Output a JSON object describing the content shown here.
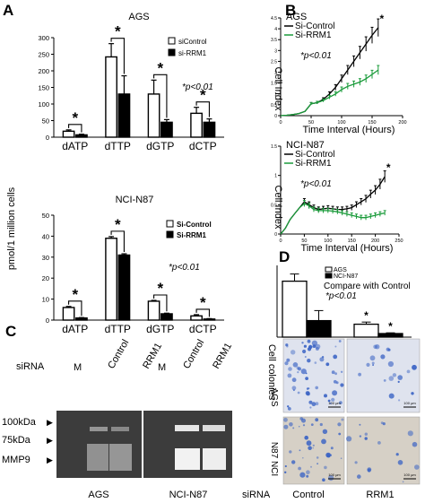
{
  "figure_labels": {
    "a": "A",
    "b": "B",
    "c": "C",
    "d": "D"
  },
  "colors": {
    "black": "#000000",
    "green": "#1a9b3a",
    "gel_bg": "#3c3c3c",
    "stain_blue": "#3a63c4",
    "plate_bg": "#dfe3ee",
    "plate_bg_nci": "#d6d0c6"
  },
  "chart_data": [
    {
      "id": "A1",
      "type": "bar",
      "title": "AGS",
      "ylabel": "pmol/1 million cells",
      "ylim": [
        0,
        300
      ],
      "yticks": [
        0,
        50,
        100,
        150,
        200,
        250,
        300
      ],
      "categories": [
        "dATP",
        "dTTP",
        "dGTP",
        "dCTP"
      ],
      "series": [
        {
          "name": "siControl",
          "values": [
            18,
            242,
            130,
            72
          ],
          "errors": [
            4,
            40,
            42,
            18
          ]
        },
        {
          "name": "si-RRM1",
          "values": [
            7,
            130,
            45,
            45
          ],
          "errors": [
            2,
            55,
            8,
            10
          ]
        }
      ],
      "significance": "*",
      "annotation": "*p<0.01"
    },
    {
      "id": "A2",
      "type": "bar",
      "title": "NCI-N87",
      "ylabel": "pmol/1 million cells",
      "ylim": [
        0,
        50
      ],
      "yticks": [
        0,
        10,
        20,
        30,
        40,
        50
      ],
      "categories": [
        "dATP",
        "dTTP",
        "dGTP",
        "dCTP"
      ],
      "series": [
        {
          "name": "Si-Control",
          "values": [
            6,
            39,
            9,
            2
          ],
          "errors": [
            0.5,
            0.8,
            0.4,
            0.6
          ]
        },
        {
          "name": "Si-RRM1",
          "values": [
            1,
            31,
            3,
            0.5
          ],
          "errors": [
            0.2,
            0.6,
            0.3,
            0.2
          ]
        }
      ],
      "significance": "*",
      "annotation": "*p<0.01"
    },
    {
      "id": "B1",
      "type": "line",
      "title": "AGS",
      "xlabel": "Time Interval (Hours)",
      "ylabel": "Cell Index",
      "xticks": [
        0,
        50,
        100,
        150,
        200
      ],
      "yticks": [
        0,
        0.5,
        1,
        1.5,
        2,
        2.5,
        3,
        3.5,
        4,
        4.5
      ],
      "xlim": [
        0,
        200
      ],
      "ylim": [
        0,
        4.5
      ],
      "series": [
        {
          "name": "Si-Control",
          "color": "#000000",
          "x": [
            0,
            10,
            20,
            30,
            40,
            50,
            60,
            70,
            80,
            90,
            100,
            110,
            120,
            130,
            140,
            150,
            160
          ],
          "y": [
            0,
            0.02,
            0.05,
            0.1,
            0.2,
            0.55,
            0.6,
            0.75,
            1.0,
            1.3,
            1.7,
            2.1,
            2.5,
            2.9,
            3.3,
            3.7,
            4.05
          ]
        },
        {
          "name": "Si-RRM1",
          "color": "#1a9b3a",
          "x": [
            0,
            10,
            20,
            30,
            40,
            50,
            60,
            70,
            80,
            90,
            100,
            110,
            120,
            130,
            140,
            150,
            160
          ],
          "y": [
            0,
            0.02,
            0.05,
            0.1,
            0.2,
            0.55,
            0.6,
            0.7,
            0.85,
            1.0,
            1.2,
            1.35,
            1.45,
            1.55,
            1.7,
            1.9,
            2.1
          ]
        }
      ],
      "significance": "*",
      "annotation": "*p<0.01"
    },
    {
      "id": "B2",
      "type": "line",
      "title": "NCI-N87",
      "xlabel": "Time Interval (Hours)",
      "ylabel": "Cell Index",
      "xticks": [
        0,
        50,
        100,
        150,
        200,
        250
      ],
      "yticks": [
        0,
        0.5,
        1,
        1.5
      ],
      "xlim": [
        0,
        250
      ],
      "ylim": [
        0,
        1.5
      ],
      "series": [
        {
          "name": "Si-Control",
          "color": "#000000",
          "x": [
            0,
            10,
            20,
            30,
            40,
            50,
            60,
            70,
            80,
            90,
            100,
            110,
            120,
            130,
            140,
            150,
            160,
            170,
            180,
            190,
            200,
            210,
            220
          ],
          "y": [
            0,
            0.1,
            0.25,
            0.35,
            0.45,
            0.55,
            0.5,
            0.45,
            0.42,
            0.43,
            0.44,
            0.43,
            0.42,
            0.42,
            0.43,
            0.45,
            0.5,
            0.55,
            0.6,
            0.68,
            0.75,
            0.85,
            0.98
          ]
        },
        {
          "name": "Si-RRM1",
          "color": "#1a9b3a",
          "x": [
            0,
            10,
            20,
            30,
            40,
            50,
            60,
            70,
            80,
            90,
            100,
            110,
            120,
            130,
            140,
            150,
            160,
            170,
            180,
            190,
            200,
            210,
            220
          ],
          "y": [
            0,
            0.1,
            0.25,
            0.35,
            0.45,
            0.52,
            0.48,
            0.42,
            0.4,
            0.4,
            0.4,
            0.39,
            0.38,
            0.36,
            0.34,
            0.32,
            0.3,
            0.28,
            0.28,
            0.3,
            0.32,
            0.34,
            0.36
          ]
        }
      ],
      "significance": "*",
      "annotation": "*p<0.01"
    },
    {
      "id": "D",
      "type": "bar",
      "ylabel": "Cell colonies",
      "ylim": [
        0,
        100
      ],
      "categories": [
        "Control",
        "RRM1"
      ],
      "series": [
        {
          "name": "AGS",
          "values": [
            78,
            18
          ],
          "errors": [
            10,
            3
          ]
        },
        {
          "name": "NCI-N87",
          "values": [
            23,
            5
          ],
          "errors": [
            14,
            1
          ]
        }
      ],
      "significance": "*",
      "annotation": "Compare with Control *p<0.01"
    }
  ],
  "panel_c": {
    "sirna_label": "siRNA",
    "lanes": [
      "M",
      "Control",
      "RRM1",
      "M",
      "Control",
      "RRM1"
    ],
    "markers": [
      "100kDa",
      "75kDa",
      "MMP9"
    ],
    "gel_labels": [
      "AGS",
      "NCI-N87"
    ],
    "arrow": "▶"
  },
  "panel_d_images": {
    "row_labels": [
      "AGS",
      "N87 NCI"
    ],
    "col_labels": [
      "Control",
      "RRM1"
    ],
    "sirna_label": "siRNA",
    "scale_label": "100 μm"
  }
}
